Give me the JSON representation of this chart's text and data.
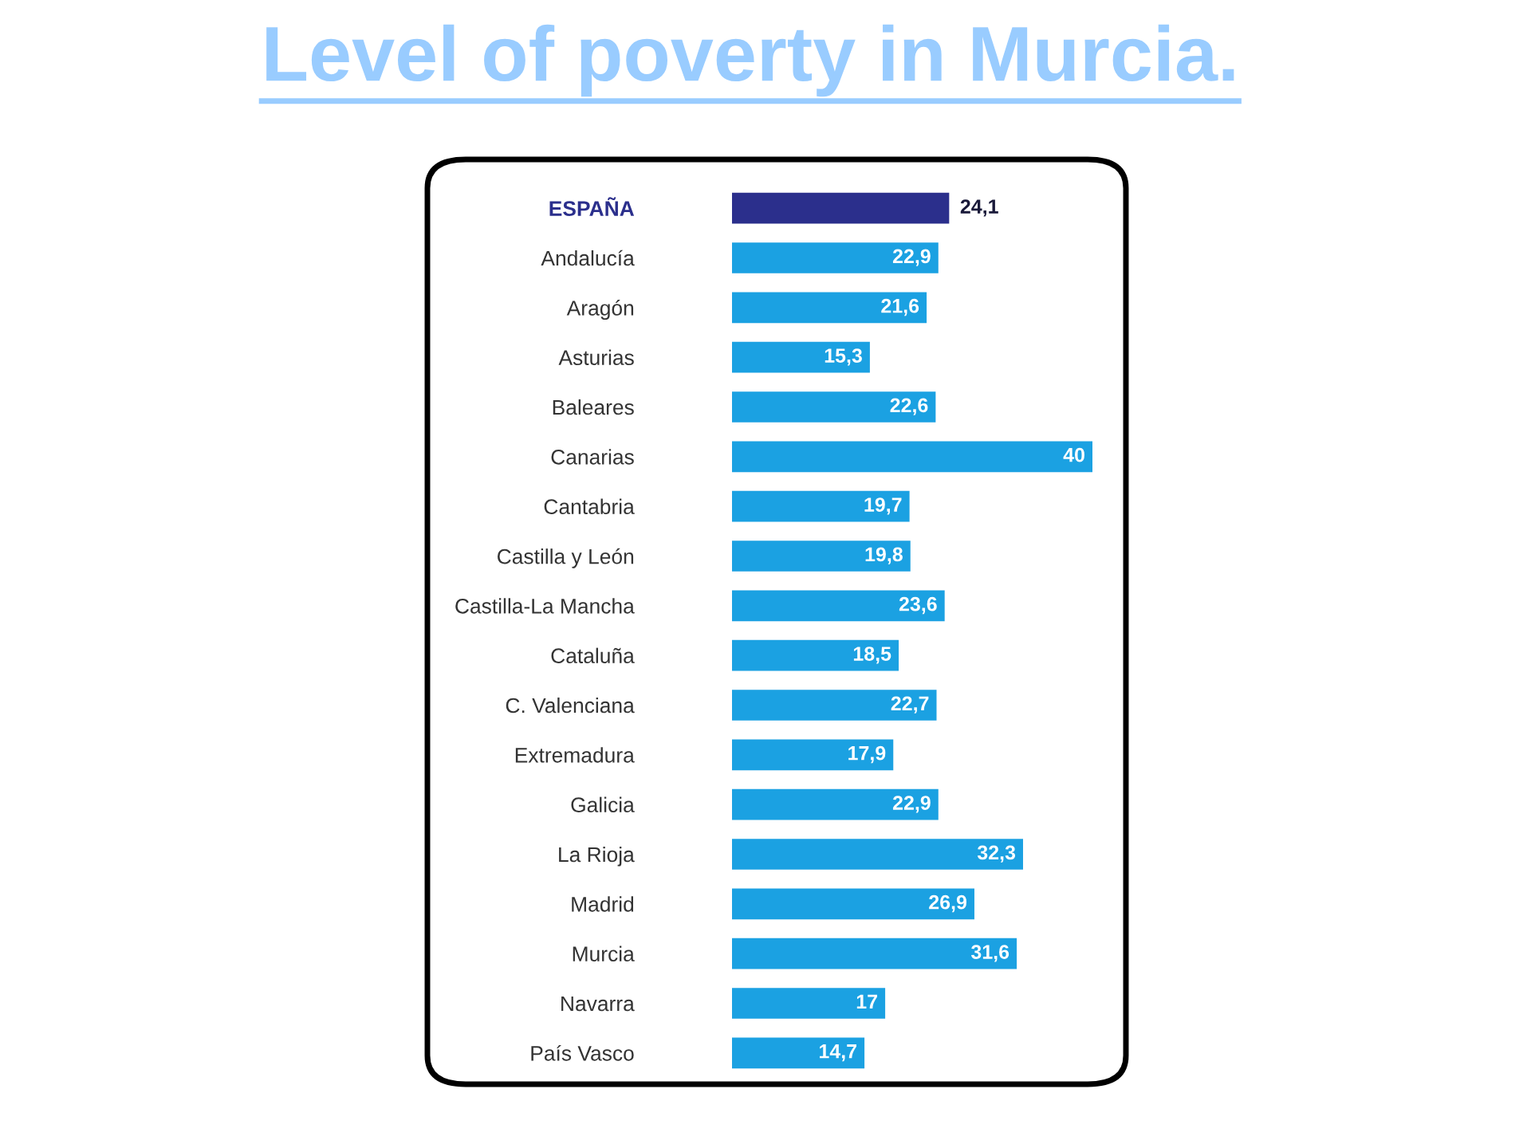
{
  "chart_data": {
    "type": "bar",
    "orientation": "horizontal",
    "title": "Level of poverty in Murcia.",
    "categories": [
      "ESPAÑA",
      "Andalucía",
      "Aragón",
      "Asturias",
      "Baleares",
      "Canarias",
      "Cantabria",
      "Castilla y León",
      "Castilla-La Mancha",
      "Cataluña",
      "C. Valenciana",
      "Extremadura",
      "Galicia",
      "La Rioja",
      "Madrid",
      "Murcia",
      "Navarra",
      "País Vasco"
    ],
    "values": [
      24.1,
      22.9,
      21.6,
      15.3,
      22.6,
      40,
      19.7,
      19.8,
      23.6,
      18.5,
      22.7,
      17.9,
      22.9,
      32.3,
      26.9,
      31.6,
      17,
      14.7
    ],
    "value_labels": [
      "24,1",
      "22,9",
      "21,6",
      "15,3",
      "22,6",
      "40",
      "19,7",
      "19,8",
      "23,6",
      "18,5",
      "22,7",
      "17,9",
      "22,9",
      "32,3",
      "26,9",
      "31,6",
      "17",
      "14,7"
    ],
    "colors": [
      "#2b2f8c",
      "#1ba1e2",
      "#1ba1e2",
      "#1ba1e2",
      "#1ba1e2",
      "#1ba1e2",
      "#1ba1e2",
      "#1ba1e2",
      "#1ba1e2",
      "#1ba1e2",
      "#1ba1e2",
      "#1ba1e2",
      "#1ba1e2",
      "#1ba1e2",
      "#1ba1e2",
      "#1ba1e2",
      "#1ba1e2",
      "#1ba1e2"
    ],
    "grid": false
  }
}
